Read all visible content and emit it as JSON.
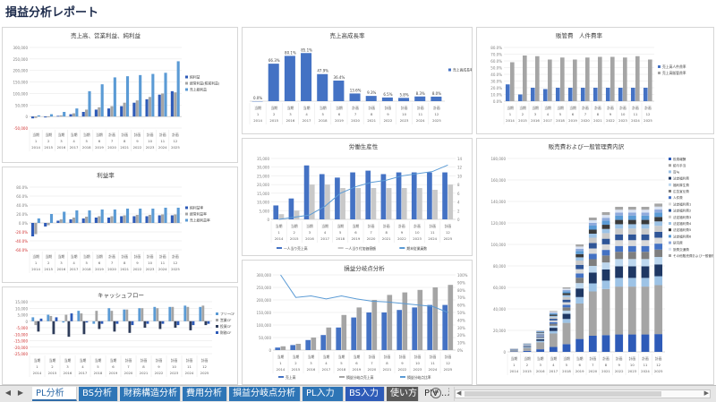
{
  "title": "損益分析レポート",
  "x_labels": [
    {
      "top": "当期",
      "mid": "1",
      "bot": "2014"
    },
    {
      "top": "当期",
      "mid": "2",
      "bot": "2015"
    },
    {
      "top": "当期",
      "mid": "3",
      "bot": "2016"
    },
    {
      "top": "当期",
      "mid": "4",
      "bot": "2017"
    },
    {
      "top": "当期",
      "mid": "5",
      "bot": "2018"
    },
    {
      "top": "当期",
      "mid": "6",
      "bot": "2019"
    },
    {
      "top": "計画",
      "mid": "7",
      "bot": "2020"
    },
    {
      "top": "計画",
      "mid": "8",
      "bot": "2021"
    },
    {
      "top": "計画",
      "mid": "9",
      "bot": "2022"
    },
    {
      "top": "計画",
      "mid": "10",
      "bot": "2023"
    },
    {
      "top": "計画",
      "mid": "11",
      "bot": "2024"
    },
    {
      "top": "計画",
      "mid": "12",
      "bot": "2025"
    }
  ],
  "chart_data": [
    {
      "id": "sales",
      "type": "bar",
      "title": "売上高、営業利益、純利益",
      "yticks": [
        "300,000",
        "250,000",
        "200,000",
        "150,000",
        "100,000",
        "50,000",
        "0",
        "-50,000"
      ],
      "ylim": [
        -50000,
        300000
      ],
      "series": [
        {
          "name": "純利益",
          "color": "#2e5bb8",
          "values": [
            -8000,
            -4000,
            3000,
            10000,
            20000,
            30000,
            35000,
            45000,
            60000,
            75000,
            95000,
            110000
          ]
        },
        {
          "name": "経常利益(税前利益)",
          "color": "#a5a5a5",
          "values": [
            -6000,
            -3000,
            5000,
            14000,
            30000,
            40000,
            45000,
            60000,
            70000,
            85000,
            100000,
            105000
          ]
        },
        {
          "name": "売上総利益",
          "color": "#5b9bd5",
          "values": [
            5000,
            10000,
            20000,
            35000,
            110000,
            140000,
            170000,
            175000,
            180000,
            185000,
            190000,
            240000
          ]
        }
      ]
    },
    {
      "id": "gross-margin",
      "type": "bar",
      "title": "売上高成長率",
      "yticks": [],
      "ylim": [
        0,
        95
      ],
      "data_labels": [
        "0.0%",
        "66.3%",
        "80.1%",
        "85.1%",
        "47.9%",
        "36.4%",
        "13.6%",
        "9.3%",
        "6.5%",
        "5.8%",
        "8.3%",
        "8.0%"
      ],
      "series": [
        {
          "name": "売上高成長率",
          "color": "#4472c4",
          "values": [
            0,
            66.3,
            80.1,
            85.1,
            47.9,
            36.4,
            13.6,
            9.3,
            6.5,
            5.8,
            8.3,
            8.0
          ]
        }
      ]
    },
    {
      "id": "expenses",
      "type": "bar",
      "title": "販管費　人件費率",
      "yticks": [
        "80.0%",
        "70.0%",
        "60.0%",
        "50.0%",
        "40.0%",
        "30.0%",
        "20.0%",
        "10.0%",
        "0.0%"
      ],
      "ylim": [
        0,
        80
      ],
      "series": [
        {
          "name": "売上高人件費率",
          "color": "#4472c4",
          "values": [
            25,
            10,
            20,
            18,
            20,
            20,
            20,
            20,
            20,
            20,
            20,
            20
          ]
        },
        {
          "name": "売上高販管費率",
          "color": "#a5a5a5",
          "values": [
            58,
            68,
            67,
            62,
            65,
            62,
            65,
            66,
            66,
            65,
            67,
            62
          ]
        }
      ]
    },
    {
      "id": "profit-ratio",
      "type": "bar",
      "title": "利益率",
      "yticks": [
        "80.0%",
        "60.0%",
        "40.0%",
        "20.0%",
        "0.0%",
        "-20.0%",
        "-40.0%",
        "-60.0%"
      ],
      "ylim": [
        -60,
        80
      ],
      "series": [
        {
          "name": "純利益率",
          "color": "#2e5bb8",
          "values": [
            -30,
            -8,
            5,
            8,
            10,
            12,
            12,
            15,
            15,
            15,
            17,
            17
          ]
        },
        {
          "name": "経常利益率",
          "color": "#a5a5a5",
          "values": [
            -25,
            -5,
            8,
            12,
            14,
            15,
            15,
            17,
            18,
            18,
            19,
            19
          ]
        },
        {
          "name": "売上総利益率",
          "color": "#5b9bd5",
          "values": [
            10,
            20,
            25,
            28,
            28,
            30,
            30,
            32,
            32,
            32,
            34,
            34
          ]
        }
      ]
    },
    {
      "id": "productivity",
      "type": "bar",
      "title": "労働生産性",
      "yticks": [
        "35,000",
        "30,000",
        "25,000",
        "20,000",
        "15,000",
        "10,000",
        "5,000",
        "0"
      ],
      "yticks2": [
        "14",
        "12",
        "10",
        "8",
        "6",
        "4",
        "2",
        "0"
      ],
      "ylim": [
        0,
        35000
      ],
      "series": [
        {
          "name": "一人当り売上高",
          "color": "#4472c4",
          "values": [
            8000,
            12000,
            31000,
            26000,
            24000,
            27000,
            28000,
            26000,
            27000,
            27000,
            27000,
            27000
          ]
        },
        {
          "name": "一人当り付加価値額",
          "color": "#c9c9c9",
          "values": [
            3000,
            5000,
            20000,
            20000,
            18000,
            18000,
            18000,
            18000,
            18000,
            18000,
            17000,
            20000
          ]
        },
        {
          "name": "期末従業員数",
          "color": "#5b9bd5",
          "type": "line",
          "values": [
            0,
            0.5,
            1,
            3,
            6,
            7.5,
            8.5,
            9,
            10,
            10.5,
            11,
            12.5
          ]
        }
      ]
    },
    {
      "id": "breakeven",
      "type": "bar",
      "title": "損益分岐点分析",
      "yticks": [
        "300,000",
        "250,000",
        "200,000",
        "150,000",
        "100,000",
        "50,000",
        "0"
      ],
      "yticks2": [
        "100%",
        "90%",
        "80%",
        "70%",
        "60%",
        "50%",
        "40%",
        "30%",
        "20%",
        "10%",
        "0%"
      ],
      "ylim": [
        0,
        300000
      ],
      "series": [
        {
          "name": "売上高",
          "color": "#4472c4",
          "values": [
            10000,
            20000,
            40000,
            60000,
            90000,
            130000,
            150000,
            150000,
            160000,
            170000,
            180000,
            180000
          ]
        },
        {
          "name": "損益分岐点売上高",
          "color": "#a5a5a5",
          "values": [
            15000,
            25000,
            50000,
            90000,
            140000,
            170000,
            200000,
            220000,
            230000,
            240000,
            250000,
            260000
          ]
        },
        {
          "name": "損益分岐点比率",
          "color": "#5b9bd5",
          "type": "line",
          "values": [
            100,
            70,
            72,
            68,
            72,
            68,
            65,
            64,
            62,
            60,
            58,
            50
          ]
        }
      ]
    },
    {
      "id": "cashflow",
      "type": "bar",
      "title": "キャッシュフロー",
      "yticks": [
        "15,000",
        "10,000",
        "5,000",
        "0",
        "-5,000",
        "-10,000",
        "-15,000",
        "-20,000",
        "-25,000"
      ],
      "ylim": [
        -25000,
        15000
      ],
      "series": [
        {
          "name": "フリーCF",
          "color": "#5b9bd5",
          "values": [
            3000,
            5000,
            -1000,
            8000,
            -2000,
            10000,
            9000,
            10000,
            11000,
            11000,
            12000,
            11000
          ]
        },
        {
          "name": "営業CF",
          "color": "#a5a5a5",
          "values": [
            -3000,
            4000,
            5000,
            6000,
            8000,
            8000,
            9000,
            10000,
            10000,
            11000,
            11000,
            12000
          ]
        },
        {
          "name": "投資CF",
          "color": "#2e3c5a",
          "values": [
            -8000,
            -10000,
            -12000,
            -10000,
            -6000,
            -8000,
            -9000,
            -5000,
            -6000,
            -5000,
            -7000,
            -3000
          ]
        },
        {
          "name": "財務CF",
          "color": "#2e5bb8",
          "values": [
            2000,
            3000,
            6000,
            -1000,
            -2000,
            -2000,
            -3000,
            -2000,
            -2000,
            -3000,
            -3000,
            -2000
          ]
        }
      ]
    },
    {
      "id": "sga-breakdown",
      "type": "bar",
      "stacked": true,
      "title": "販売費および一般管理費内訳",
      "yticks": [
        "180,000",
        "160,000",
        "140,000",
        "120,000",
        "100,000",
        "80,000",
        "60,000",
        "40,000",
        "20,000",
        "0"
      ],
      "ylim": [
        0,
        180000
      ],
      "totals": [
        3000,
        8000,
        20000,
        38000,
        60000,
        100000,
        125000,
        130000,
        135000,
        135000,
        135000,
        138000
      ],
      "legend": [
        "役員報酬",
        "給与手当",
        "賞与",
        "法定福利費",
        "福利厚生費",
        "広告宣伝費",
        "人件費",
        "法定福利費1",
        "法定福利費2",
        "法定福利費3",
        "法定福利費4",
        "法定福利費5",
        "法定福利費6",
        "研究費",
        "旅費交通費",
        "その他販売費および一般管理費"
      ],
      "colors": [
        "#2e5bb8",
        "#a5a5a5",
        "#9dc3e6",
        "#1f3864",
        "#bdd7ee",
        "#7f7f7f",
        "#4472c4",
        "#d9d9d9",
        "#2f5597",
        "#c9c9c9",
        "#9dc3e6",
        "#3a3a3a",
        "#5b9bd5",
        "#8faadc",
        "#dae3f3",
        "#a5a5a5"
      ],
      "shares": [
        0.12,
        0.33,
        0.06,
        0.08,
        0.05,
        0.05,
        0.04,
        0.04,
        0.04,
        0.04,
        0.03,
        0.03,
        0.03,
        0.02,
        0.02,
        0.02
      ]
    }
  ],
  "tabs": [
    {
      "label": "PL分析",
      "active": true
    },
    {
      "label": "BS分析",
      "active": false
    },
    {
      "label": "財務構造分析",
      "active": false
    },
    {
      "label": "費用分析",
      "active": false
    },
    {
      "label": "損益分岐点分析",
      "active": false
    },
    {
      "label": "PL入力",
      "active": false
    },
    {
      "label": "BS入力",
      "active": false
    },
    {
      "label": "使い方",
      "active": false
    },
    {
      "label": "PIV ...",
      "active": false
    }
  ],
  "tab_colors": [
    "#ffffff",
    "#2e75b6",
    "#2e75b6",
    "#2e75b6",
    "#2e75b6",
    "#2e75b6",
    "#2e5bb8",
    "#595959",
    "#e6e6e6"
  ],
  "nav": {
    "prev": "◀",
    "next": "▶",
    "add": "+",
    "more": "⋮"
  }
}
